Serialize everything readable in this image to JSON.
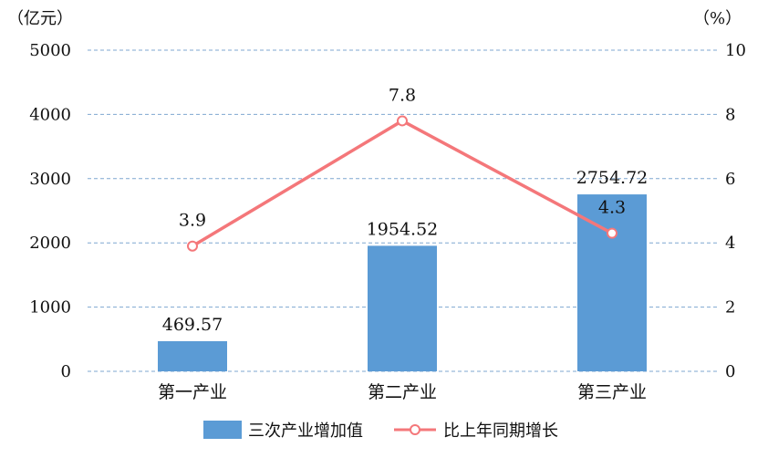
{
  "chart_data": {
    "type": "bar",
    "categories": [
      "第一产业",
      "第二产业",
      "第三产业"
    ],
    "y_left": {
      "unit_label": "（亿元）",
      "ylim": [
        0,
        5000
      ],
      "ticks": [
        0,
        1000,
        2000,
        3000,
        4000,
        5000
      ]
    },
    "y_right": {
      "unit_label": "（%）",
      "ylim": [
        0,
        10
      ],
      "ticks": [
        0,
        2,
        4,
        6,
        8,
        10
      ]
    },
    "series": [
      {
        "name": "三次产业增加值",
        "type": "bar",
        "axis": "left",
        "color": "#5B9BD5",
        "values": [
          469.57,
          1954.52,
          2754.72
        ],
        "labels": [
          "469.57",
          "1954.52",
          "2754.72"
        ]
      },
      {
        "name": "比上年同期增长",
        "type": "line",
        "axis": "right",
        "color": "#F4777A",
        "values": [
          3.9,
          7.8,
          4.3
        ],
        "labels": [
          "3.9",
          "7.8",
          "4.3"
        ]
      }
    ],
    "grid": true,
    "grid_color": "#7FA7D0",
    "legend_position": "bottom"
  }
}
